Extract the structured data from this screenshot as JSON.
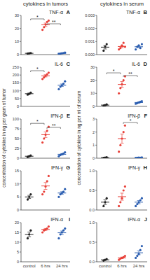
{
  "columns": [
    {
      "header": "cytokines in tumors",
      "y_label": "concentration of cytokine in ng per gram of tumor"
    },
    {
      "header": "cytokines in serum",
      "y_label": "concentration of cytokine in ng per ml of serum"
    }
  ],
  "chart_data": [
    {
      "type": "dot",
      "panel": "A",
      "title": "TNF-α",
      "categories": [
        "control",
        "6 hrs",
        "24 hrs"
      ],
      "colors": [
        "#222222",
        "#e8413a",
        "#2a5db0"
      ],
      "ylim": [
        0,
        30
      ],
      "yticks": [
        0,
        10,
        20,
        30
      ],
      "tick_labels": "y",
      "points": [
        [
          0.8,
          1.0,
          1.2
        ],
        [
          19,
          21,
          23,
          25,
          26
        ],
        [
          0.5,
          0.8,
          1.0,
          1.2,
          1.5
        ]
      ],
      "values": [
        1.0,
        22.8,
        1.0
      ],
      "errors": [
        0.1,
        1.3,
        0.2
      ],
      "significance": [
        {
          "text": "*",
          "from": "control",
          "to": "6 hrs"
        },
        {
          "text": "**",
          "from": "6 hrs",
          "to": "24 hrs"
        }
      ]
    },
    {
      "type": "dot",
      "panel": "B",
      "title": "TNF-α",
      "categories": [
        "control",
        "6 hrs",
        "24 hrs"
      ],
      "colors": [
        "#222222",
        "#e8413a",
        "#2a5db0"
      ],
      "ylim": [
        0,
        0.003
      ],
      "yticks": [
        {
          "value": 0,
          "label": "0.000"
        },
        {
          "value": 0.001,
          "label": "0.001"
        },
        {
          "value": 0.002,
          "label": "0.002"
        },
        {
          "value": 0.003,
          "label": "0.003"
        }
      ],
      "tick_labels": "y",
      "points": [
        [
          0.0003,
          0.0006,
          0.0008
        ],
        [
          0.0004,
          0.0005,
          0.0007,
          0.0009,
          0.0006
        ],
        [
          0.0004,
          0.0006,
          0.0007,
          0.0005,
          0.0008
        ]
      ],
      "values": [
        0.00057,
        0.00062,
        0.0006
      ],
      "errors": [
        0.00014,
        9e-05,
        7e-05
      ],
      "significance": []
    },
    {
      "type": "dot",
      "panel": "C",
      "title": "IL-6",
      "categories": [
        "control",
        "6 hrs",
        "24 hrs"
      ],
      "colors": [
        "#222222",
        "#e8413a",
        "#2a5db0"
      ],
      "ylim": [
        0,
        250
      ],
      "yticks": [
        0,
        50,
        100,
        150,
        200,
        250
      ],
      "tick_labels": "y",
      "points": [
        [
          75,
          80,
          88
        ],
        [
          175,
          185,
          195,
          205,
          215
        ],
        [
          110,
          125,
          135,
          145,
          160
        ]
      ],
      "values": [
        81,
        195,
        135
      ],
      "errors": [
        4,
        7,
        8
      ],
      "significance": [
        {
          "text": "*",
          "from": "control",
          "to": "6 hrs"
        }
      ]
    },
    {
      "type": "dot",
      "panel": "D",
      "title": "IL-6",
      "categories": [
        "control",
        "6 hrs",
        "24 hrs"
      ],
      "colors": [
        "#222222",
        "#e8413a",
        "#2a5db0"
      ],
      "ylim": [
        0,
        30
      ],
      "yticks": [
        0,
        10,
        20,
        30
      ],
      "tick_labels": "y",
      "points": [
        [
          0.5,
          1,
          1.5
        ],
        [
          10,
          14,
          17,
          20,
          23
        ],
        [
          2,
          2.5,
          3,
          3.5,
          4
        ]
      ],
      "values": [
        1,
        16.8,
        3
      ],
      "errors": [
        0.3,
        2.2,
        0.4
      ],
      "significance": [
        {
          "text": "*",
          "from": "control",
          "to": "6 hrs"
        },
        {
          "text": "**",
          "from": "6 hrs",
          "to": "24 hrs"
        }
      ]
    },
    {
      "type": "dot",
      "panel": "E",
      "title": "IFN-β",
      "categories": [
        "control",
        "6 hrs",
        "24 hrs"
      ],
      "colors": [
        "#222222",
        "#e8413a",
        "#2a5db0"
      ],
      "ylim": [
        0,
        100
      ],
      "yticks": [
        0,
        25,
        50,
        75,
        100
      ],
      "tick_labels": "y",
      "points": [
        [
          3,
          5,
          7
        ],
        [
          40,
          50,
          60,
          70,
          80
        ],
        [
          5,
          8,
          10,
          12,
          15
        ]
      ],
      "values": [
        5,
        60,
        10
      ],
      "errors": [
        1.2,
        7,
        1.7
      ],
      "significance": [
        {
          "text": "*",
          "from": "control",
          "to": "6 hrs"
        },
        {
          "text": "**",
          "from": "6 hrs",
          "to": "24 hrs"
        }
      ]
    },
    {
      "type": "dot",
      "panel": "F",
      "title": "IFN-β",
      "categories": [
        "control",
        "6 hrs",
        "24 hrs"
      ],
      "colors": [
        "#222222",
        "#e8413a",
        "#2a5db0"
      ],
      "ylim": [
        0,
        3
      ],
      "yticks": [
        0,
        1,
        2,
        3
      ],
      "tick_labels": "y",
      "points": [
        [
          0.02,
          0.05,
          0.08
        ],
        [
          0.5,
          1.0,
          1.5,
          2.0,
          2.5
        ],
        [
          0.02,
          0.03,
          0.05,
          0.04,
          0.06
        ]
      ],
      "values": [
        0.05,
        1.5,
        0.04
      ],
      "errors": [
        0.02,
        0.35,
        0.01
      ],
      "significance": [
        {
          "text": "*",
          "from": "6 hrs",
          "to": "24 hrs"
        }
      ]
    },
    {
      "type": "dot",
      "panel": "G",
      "title": "IFN-γ",
      "categories": [
        "control",
        "6 hrs",
        "24 hrs"
      ],
      "colors": [
        "#222222",
        "#e8413a",
        "#2a5db0"
      ],
      "ylim": [
        0,
        15
      ],
      "yticks": [
        0,
        5,
        10,
        15
      ],
      "tick_labels": "y",
      "points": [
        [
          4,
          5,
          6
        ],
        [
          6,
          7,
          9,
          11,
          13
        ],
        [
          5,
          6,
          6.5,
          7,
          8
        ]
      ],
      "values": [
        5,
        9.2,
        6.5
      ],
      "errors": [
        0.6,
        1.3,
        0.5
      ],
      "significance": []
    },
    {
      "type": "dot",
      "panel": "H",
      "title": "IFN-γ",
      "categories": [
        "control",
        "6 hrs",
        "24 hrs"
      ],
      "colors": [
        "#222222",
        "#e8413a",
        "#2a5db0"
      ],
      "ylim": [
        0,
        1
      ],
      "yticks": [
        {
          "value": 0,
          "label": "0.0"
        },
        {
          "value": 0.5,
          "label": "0.5"
        },
        {
          "value": 1,
          "label": "1.0"
        }
      ],
      "tick_labels": "y",
      "points": [
        [
          0.1,
          0.2,
          0.3
        ],
        [
          0.1,
          0.2,
          0.3,
          0.5,
          0.6
        ],
        [
          0.1,
          0.15,
          0.2,
          0.25,
          0.3
        ]
      ],
      "values": [
        0.2,
        0.34,
        0.2
      ],
      "errors": [
        0.06,
        0.09,
        0.04
      ],
      "significance": []
    },
    {
      "type": "dot",
      "panel": "I",
      "title": "IFN-α",
      "categories": [
        "control",
        "6 hrs",
        "24 hrs"
      ],
      "colors": [
        "#222222",
        "#e8413a",
        "#2a5db0"
      ],
      "ylim": [
        0,
        20
      ],
      "yticks": [
        0,
        5,
        10,
        15,
        20
      ],
      "tick_labels": true,
      "points": [
        [
          12,
          14,
          16
        ],
        [
          15,
          16,
          16.5,
          17,
          18
        ],
        [
          12,
          14,
          15,
          16,
          17
        ]
      ],
      "values": [
        14,
        16.5,
        14.8
      ],
      "errors": [
        1.2,
        0.5,
        0.9
      ],
      "significance": []
    },
    {
      "type": "dot",
      "panel": "J",
      "title": "IFN-α",
      "categories": [
        "control",
        "6 hrs",
        "24 hrs"
      ],
      "colors": [
        "#222222",
        "#e8413a",
        "#2a5db0"
      ],
      "ylim": [
        0,
        1
      ],
      "yticks": [
        {
          "value": 0,
          "label": "0.0"
        },
        {
          "value": 0.5,
          "label": "0.5"
        },
        {
          "value": 1,
          "label": "1.0"
        }
      ],
      "tick_labels": true,
      "points": [
        [
          0.03,
          0.05,
          0.07
        ],
        [
          0.05,
          0.08,
          0.1,
          0.12,
          0.15
        ],
        [
          0.1,
          0.15,
          0.2,
          0.3,
          0.4
        ]
      ],
      "values": [
        0.05,
        0.1,
        0.23
      ],
      "errors": [
        0.01,
        0.02,
        0.05
      ],
      "significance": []
    }
  ]
}
